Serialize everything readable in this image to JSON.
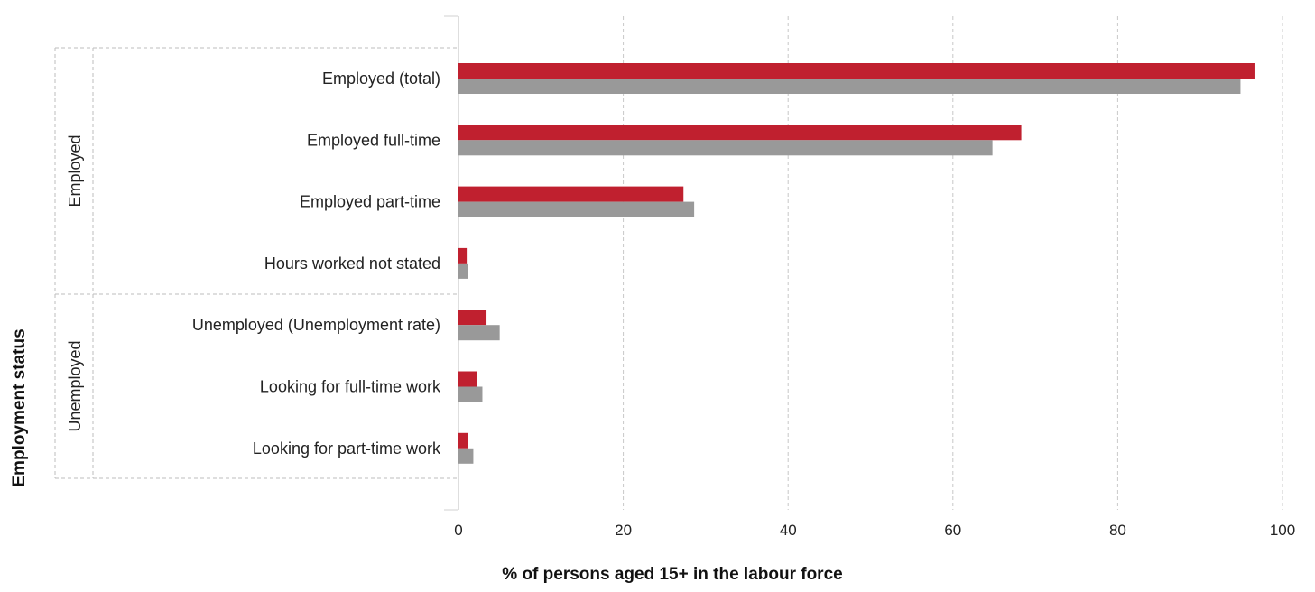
{
  "chart_data": {
    "type": "bar",
    "orientation": "horizontal",
    "title": "",
    "xlabel": "% of persons aged 15+ in the labour force",
    "ylabel": "Employment status",
    "xlim": [
      0,
      100
    ],
    "xticks": [
      0,
      20,
      40,
      60,
      80,
      100
    ],
    "grid": "vertical dashed",
    "legend": "none",
    "groups": [
      {
        "label": "Employed",
        "categories": [
          "Employed (total)",
          "Employed full-time",
          "Employed part-time",
          "Hours worked not stated"
        ]
      },
      {
        "label": "Unemployed",
        "categories": [
          "Unemployed (Unemployment rate)",
          "Looking for full-time work",
          "Looking for part-time work"
        ]
      }
    ],
    "categories": [
      "Employed (total)",
      "Employed full-time",
      "Employed part-time",
      "Hours worked not stated",
      "Unemployed (Unemployment rate)",
      "Looking for full-time work",
      "Looking for part-time work"
    ],
    "series": [
      {
        "color": "#c0202f",
        "values": [
          96.6,
          68.3,
          27.3,
          1.0,
          3.4,
          2.2,
          1.2
        ]
      },
      {
        "color": "#999999",
        "values": [
          94.9,
          64.8,
          28.6,
          1.2,
          5.0,
          2.9,
          1.8
        ]
      }
    ]
  }
}
